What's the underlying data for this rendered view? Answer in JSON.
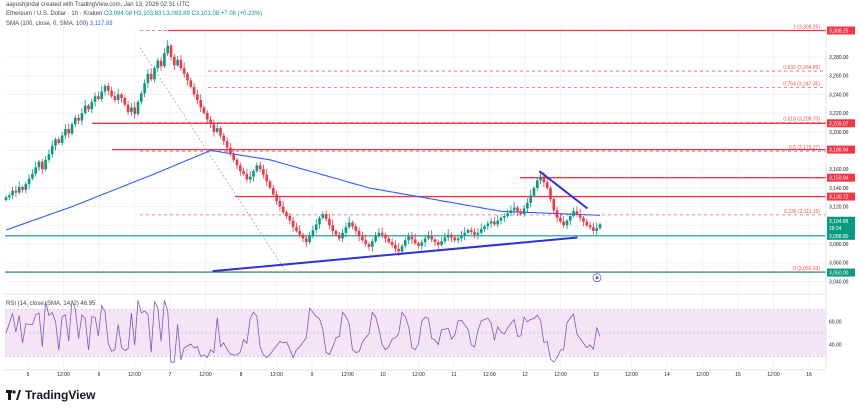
{
  "header": {
    "created_by": "aayushjindal created with TradingView.com, Jan 13, 2026 02:31 UTC",
    "symbol": "Ethereum / U.S. Dollar · 1h · Kraken",
    "ohlc": "O3,094.08 H3,103.83 L3,093.89 C3,101.08 +7.08 (+0.23%)",
    "indicator": "SMA (100, close, 0, SMA, 100)",
    "indicator_value": "3,117.83"
  },
  "rsi_label": "RSI (14, close, SMA, 14, 2)   46.95",
  "brand": "TradingView",
  "colors": {
    "up": "#089981",
    "down": "#f23645",
    "sma": "#2962ff",
    "trendline": "#2e32d6",
    "rsi": "#7e57c2",
    "rsi_band": "#f3e5f5",
    "resistance": "#f23645",
    "support": "#089981"
  },
  "chart_data": {
    "type": "candlestick",
    "timeframe": "1h",
    "x_tick_labels": [
      "5",
      "12:00",
      "6",
      "12:00",
      "7",
      "12:00",
      "8",
      "12:00",
      "9",
      "12:00",
      "10",
      "12:00",
      "11",
      "12:00",
      "12",
      "12:00",
      "13",
      "12:00",
      "14",
      "12:00",
      "15",
      "12:00",
      "16"
    ],
    "y_tick_labels": [
      "3,280.00",
      "3,260.00",
      "3,240.00",
      "3,220.00",
      "3,200.00",
      "3,180.00",
      "3,160.00",
      "3,140.00",
      "3,120.00",
      "3,100.00",
      "3,080.00",
      "3,060.00",
      "3,040.00"
    ],
    "ylim": [
      3033,
      3312
    ],
    "last_price": 3101.08,
    "price_labels": [
      {
        "text": "3,308.25",
        "kind": "red"
      },
      {
        "text": "3,209.07",
        "kind": "red"
      },
      {
        "text": "3,180.94",
        "kind": "red"
      },
      {
        "text": "3,150.94",
        "kind": "red"
      },
      {
        "text": "3,130.72",
        "kind": "red"
      },
      {
        "text": "3,104.88",
        "kind": "green"
      },
      {
        "text": "28:24",
        "kind": "green"
      },
      {
        "text": "3,088.80",
        "kind": "green"
      },
      {
        "text": "3,050.00",
        "kind": "green"
      }
    ],
    "horizontal_levels": [
      {
        "value": 3308.25,
        "style": "solid",
        "color": "red"
      },
      {
        "value": 3209.07,
        "style": "solid",
        "color": "red"
      },
      {
        "value": 3180.94,
        "style": "solid",
        "color": "red"
      },
      {
        "value": 3150.94,
        "style": "solid",
        "color": "red"
      },
      {
        "value": 3130.72,
        "style": "solid",
        "color": "red"
      },
      {
        "value": 3088.8,
        "style": "solid",
        "color": "green"
      },
      {
        "value": 3050.0,
        "style": "solid",
        "color": "green"
      }
    ],
    "fib_levels": [
      {
        "ratio": "1",
        "value": 3308.25,
        "label": "1 (3,308.25)"
      },
      {
        "ratio": "0.832",
        "value": 3264.89,
        "label": "0.832 (3,264.89)"
      },
      {
        "ratio": "0.764",
        "value": 3247.35,
        "label": "0.764 (3,247.35)"
      },
      {
        "ratio": "0.618",
        "value": 3209.7,
        "label": "0.618 (3,209.70)"
      },
      {
        "ratio": "0.5",
        "value": 3179.27,
        "label": "0.5 (3,179.27)"
      },
      {
        "ratio": "0.236",
        "value": 3111.19,
        "label": "0.236 (3,111.19)"
      },
      {
        "ratio": "0",
        "value": 3050.33,
        "label": "0 (3,050.33)"
      }
    ],
    "trendlines": [
      {
        "name": "support",
        "from": {
          "x": 7.6,
          "y": 3051
        },
        "to": {
          "x": 12.74,
          "y": 3087
        }
      },
      {
        "name": "resistance",
        "from": {
          "x": 12.2,
          "y": 3158
        },
        "to": {
          "x": 12.88,
          "y": 3118
        }
      }
    ],
    "candles_close": [
      3130,
      3132,
      3137,
      3135,
      3141,
      3138,
      3144,
      3150,
      3155,
      3162,
      3168,
      3160,
      3170,
      3176,
      3185,
      3192,
      3188,
      3196,
      3203,
      3198,
      3208,
      3215,
      3212,
      3220,
      3228,
      3224,
      3232,
      3238,
      3235,
      3243,
      3249,
      3244,
      3238,
      3234,
      3240,
      3236,
      3229,
      3221,
      3226,
      3219,
      3232,
      3241,
      3252,
      3262,
      3256,
      3268,
      3276,
      3270,
      3284,
      3292,
      3280,
      3271,
      3277,
      3268,
      3262,
      3255,
      3248,
      3240,
      3234,
      3226,
      3220,
      3213,
      3208,
      3200,
      3204,
      3196,
      3190,
      3183,
      3176,
      3170,
      3164,
      3158,
      3155,
      3149,
      3152,
      3158,
      3164,
      3160,
      3154,
      3147,
      3140,
      3133,
      3126,
      3120,
      3114,
      3110,
      3105,
      3098,
      3094,
      3090,
      3086,
      3082,
      3089,
      3095,
      3101,
      3108,
      3112,
      3107,
      3100,
      3094,
      3090,
      3086,
      3092,
      3098,
      3103,
      3099,
      3094,
      3088,
      3084,
      3080,
      3077,
      3083,
      3089,
      3092,
      3090,
      3086,
      3082,
      3079,
      3075,
      3072,
      3078,
      3084,
      3088,
      3085,
      3081,
      3078,
      3082,
      3086,
      3089,
      3085,
      3082,
      3079,
      3083,
      3087,
      3090,
      3087,
      3084,
      3086,
      3089,
      3092,
      3095,
      3093,
      3090,
      3092,
      3096,
      3099,
      3102,
      3104,
      3101,
      3105,
      3108,
      3110,
      3113,
      3116,
      3119,
      3115,
      3112,
      3118,
      3124,
      3132,
      3140,
      3148,
      3152,
      3146,
      3140,
      3128,
      3116,
      3108,
      3104,
      3100,
      3105,
      3110,
      3115,
      3112,
      3108,
      3104,
      3100,
      3098,
      3094,
      3097,
      3101.08
    ],
    "sma100_anchor": [
      {
        "i": 0,
        "v": 3095
      },
      {
        "i": 20,
        "v": 3120
      },
      {
        "i": 45,
        "v": 3155
      },
      {
        "i": 62,
        "v": 3180
      },
      {
        "i": 80,
        "v": 3170
      },
      {
        "i": 110,
        "v": 3140
      },
      {
        "i": 150,
        "v": 3115
      },
      {
        "i": 185,
        "v": 3110
      }
    ],
    "rsi": {
      "label": "RSI (14, close, SMA, 14, 2)",
      "value": 46.95,
      "levels_shown": [
        "60.00",
        "40.00"
      ],
      "band": [
        30,
        70
      ]
    }
  }
}
